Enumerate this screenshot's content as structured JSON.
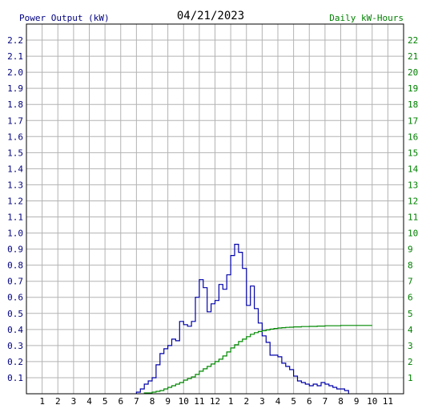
{
  "header": {
    "left_label": "Power Output (kW)",
    "date": "04/21/2023",
    "right_label": "Daily kW-Hours"
  },
  "colors": {
    "power": "#0000aa",
    "energy": "#008800",
    "left_axis_text": "#000080",
    "right_axis_text": "#008000",
    "grid": "#b3b3b3",
    "frame": "#000000"
  },
  "chart_data": {
    "type": "line",
    "title": "04/21/2023",
    "ylabel": "Power Output (kW)",
    "y2label": "Daily kW-Hours",
    "xlim": [
      0,
      24
    ],
    "ylim": [
      0,
      2.3
    ],
    "y2lim": [
      0,
      23
    ],
    "grid": true,
    "x_tick_labels": [
      "1",
      "2",
      "3",
      "4",
      "5",
      "6",
      "7",
      "8",
      "9",
      "10",
      "11",
      "12",
      "1",
      "2",
      "3",
      "4",
      "5",
      "6",
      "7",
      "8",
      "9",
      "10",
      "11"
    ],
    "y_tick_labels": [
      "0.1",
      "0.2",
      "0.3",
      "0.4",
      "0.5",
      "0.6",
      "0.7",
      "0.8",
      "0.9",
      "1.0",
      "1.1",
      "1.2",
      "1.3",
      "1.4",
      "1.5",
      "1.6",
      "1.7",
      "1.8",
      "1.9",
      "2.0",
      "2.1",
      "2.2"
    ],
    "y2_tick_labels": [
      "1",
      "2",
      "3",
      "4",
      "5",
      "6",
      "7",
      "8",
      "9",
      "10",
      "11",
      "12",
      "13",
      "14",
      "15",
      "16",
      "17",
      "18",
      "19",
      "20",
      "21",
      "22"
    ],
    "series": [
      {
        "name": "Power Output (kW)",
        "axis": "left",
        "step": true,
        "x": [
          7.0,
          7.25,
          7.5,
          7.75,
          8.0,
          8.25,
          8.5,
          8.75,
          9.0,
          9.25,
          9.5,
          9.75,
          10.0,
          10.25,
          10.5,
          10.75,
          11.0,
          11.25,
          11.5,
          11.75,
          12.0,
          12.25,
          12.5,
          12.75,
          13.0,
          13.25,
          13.5,
          13.75,
          14.0,
          14.25,
          14.5,
          14.75,
          15.0,
          15.25,
          15.5,
          15.75,
          16.0,
          16.25,
          16.5,
          16.75,
          17.0,
          17.25,
          17.5,
          17.75,
          18.0,
          18.25,
          18.5,
          18.75,
          19.0,
          19.25,
          19.5,
          19.75,
          20.0,
          20.25,
          20.5
        ],
        "y": [
          0.01,
          0.03,
          0.06,
          0.08,
          0.1,
          0.18,
          0.25,
          0.28,
          0.3,
          0.34,
          0.33,
          0.45,
          0.43,
          0.42,
          0.45,
          0.6,
          0.71,
          0.66,
          0.51,
          0.56,
          0.58,
          0.68,
          0.65,
          0.74,
          0.86,
          0.93,
          0.88,
          0.78,
          0.55,
          0.67,
          0.53,
          0.44,
          0.36,
          0.32,
          0.24,
          0.24,
          0.23,
          0.19,
          0.17,
          0.15,
          0.11,
          0.08,
          0.07,
          0.06,
          0.05,
          0.06,
          0.05,
          0.07,
          0.06,
          0.05,
          0.04,
          0.03,
          0.03,
          0.02,
          0.0
        ]
      },
      {
        "name": "Daily kW-Hours",
        "axis": "right",
        "step": true,
        "x": [
          7.5,
          8.0,
          8.25,
          8.5,
          8.75,
          9.0,
          9.25,
          9.5,
          9.75,
          10.0,
          10.25,
          10.5,
          10.75,
          11.0,
          11.25,
          11.5,
          11.75,
          12.0,
          12.25,
          12.5,
          12.75,
          13.0,
          13.25,
          13.5,
          13.75,
          14.0,
          14.25,
          14.5,
          14.75,
          15.0,
          15.25,
          15.5,
          15.75,
          16.0,
          16.25,
          16.5,
          16.75,
          17.0,
          17.5,
          18.0,
          18.5,
          19.0,
          20.0,
          22.0
        ],
        "y": [
          0.05,
          0.1,
          0.15,
          0.2,
          0.3,
          0.4,
          0.5,
          0.6,
          0.7,
          0.85,
          0.95,
          1.05,
          1.2,
          1.4,
          1.55,
          1.7,
          1.85,
          2.0,
          2.15,
          2.35,
          2.6,
          2.85,
          3.05,
          3.25,
          3.4,
          3.55,
          3.7,
          3.8,
          3.87,
          3.92,
          3.97,
          4.02,
          4.06,
          4.09,
          4.11,
          4.13,
          4.14,
          4.16,
          4.18,
          4.19,
          4.21,
          4.23,
          4.25,
          4.25
        ]
      }
    ]
  }
}
